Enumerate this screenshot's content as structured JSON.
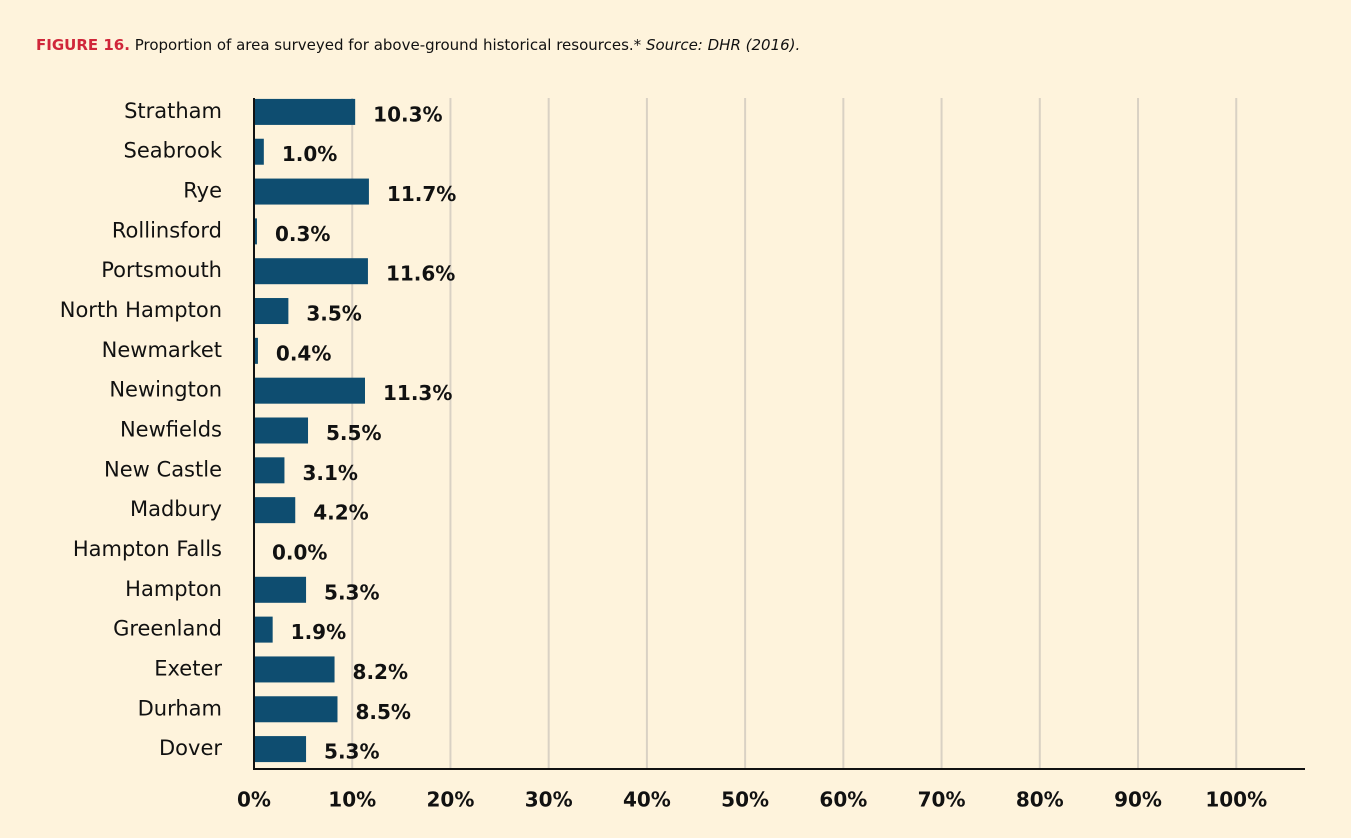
{
  "chart_data": {
    "type": "hbar",
    "title_label": "FIGURE 16.",
    "title": "Proportion of area surveyed for above-ground historical resources.*",
    "source": "Source: DHR (2016).",
    "categories": [
      "Stratham",
      "Seabrook",
      "Rye",
      "Rollinsford",
      "Portsmouth",
      "North Hampton",
      "Newmarket",
      "Newington",
      "Newfields",
      "New Castle",
      "Madbury",
      "Hampton Falls",
      "Hampton",
      "Greenland",
      "Exeter",
      "Durham",
      "Dover"
    ],
    "values": [
      10.3,
      1.0,
      11.7,
      0.3,
      11.6,
      3.5,
      0.4,
      11.3,
      5.5,
      3.1,
      4.2,
      0.0,
      5.3,
      1.9,
      8.2,
      8.5,
      5.3
    ],
    "value_labels": [
      "10.3%",
      "1.0%",
      "11.7%",
      "0.3%",
      "11.6%",
      "3.5%",
      "0.4%",
      "11.3%",
      "5.5%",
      "3.1%",
      "4.2%",
      "0.0%",
      "5.3%",
      "1.9%",
      "8.2%",
      "8.5%",
      "5.3%"
    ],
    "color": "#0e4d70",
    "xlim": [
      0,
      107
    ],
    "xticks": [
      {
        "value": 0,
        "label": "0%"
      },
      {
        "value": 10,
        "label": "10%"
      },
      {
        "value": 20,
        "label": "20%"
      },
      {
        "value": 30,
        "label": "30%"
      },
      {
        "value": 40,
        "label": "40%"
      },
      {
        "value": 50,
        "label": "50%"
      },
      {
        "value": 60,
        "label": "60%"
      },
      {
        "value": 70,
        "label": "70%"
      },
      {
        "value": 80,
        "label": "80%"
      },
      {
        "value": 90,
        "label": "90%"
      },
      {
        "value": 100,
        "label": "100%"
      }
    ],
    "grid": true
  }
}
